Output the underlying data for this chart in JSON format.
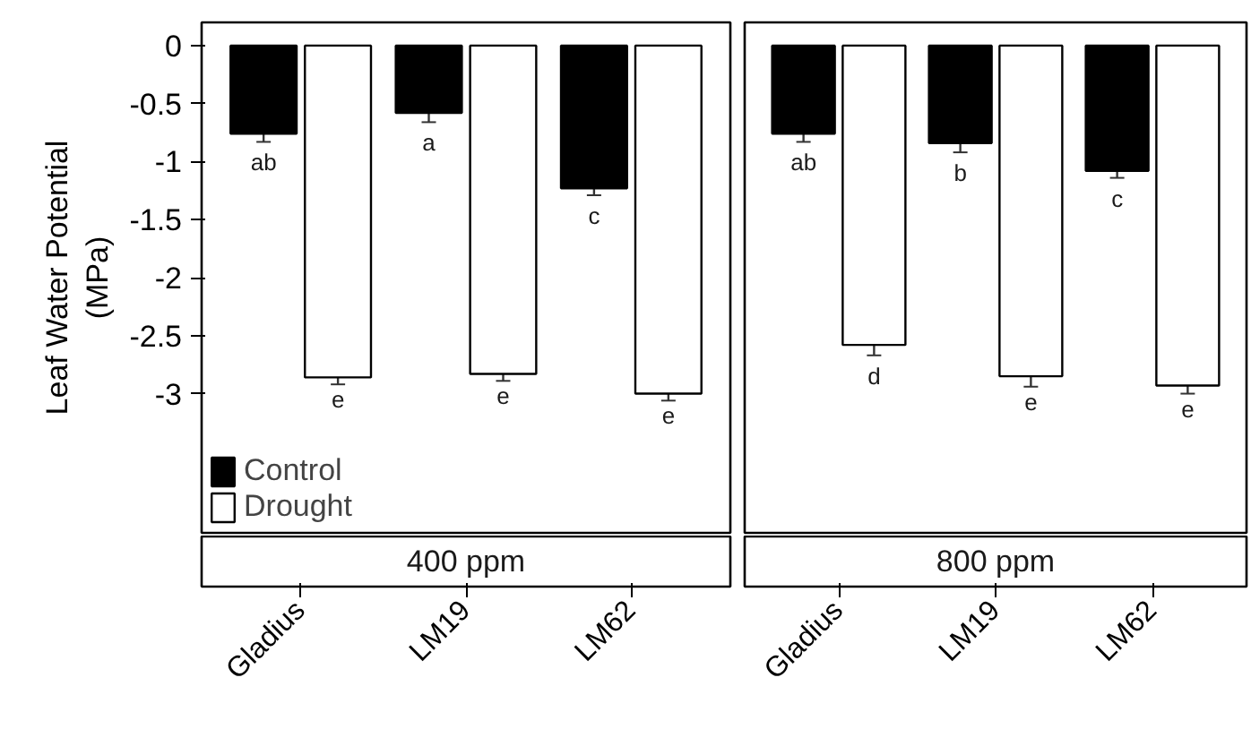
{
  "chart_data": [
    {
      "type": "bar",
      "title": "400 ppm",
      "ylabel": "Leaf Water Potential\n(MPa)",
      "categories": [
        "Gladius",
        "LM19",
        "LM62"
      ],
      "ylim": [
        -4.2,
        0.2
      ],
      "yticks": [
        0,
        {
          "value": -0.5,
          "label": "-0.5"
        },
        {
          "value": -1,
          "label": "-1"
        },
        {
          "value": -1.5,
          "label": "-1.5"
        },
        {
          "value": -2,
          "label": "-2"
        },
        {
          "value": -2.5,
          "label": "-2.5"
        },
        {
          "value": -3,
          "label": "-3"
        }
      ],
      "legend": "bottom left",
      "grid": false,
      "series": [
        {
          "name": "Control",
          "color": "#000000",
          "values": [
            -0.76,
            -0.58,
            -1.23
          ],
          "errors": [
            0.07,
            0.08,
            0.06
          ],
          "value_labels": [
            "ab",
            "a",
            "c"
          ]
        },
        {
          "name": "Drought",
          "color": "#ffffff",
          "values": [
            -2.86,
            -2.83,
            -3.0
          ],
          "errors": [
            0.06,
            0.06,
            0.06
          ],
          "value_labels": [
            "e",
            "e",
            "e"
          ]
        }
      ]
    },
    {
      "type": "bar",
      "title": "800 ppm",
      "categories": [
        "Gladius",
        "LM19",
        "LM62"
      ],
      "ylim": [
        -4.2,
        0.2
      ],
      "tick_labels": "x",
      "grid": false,
      "series": [
        {
          "color": "#000000",
          "values": [
            -0.76,
            -0.84,
            -1.08
          ],
          "errors": [
            0.07,
            0.08,
            0.06
          ],
          "value_labels": [
            "ab",
            "b",
            "c"
          ]
        },
        {
          "color": "#ffffff",
          "values": [
            -2.58,
            -2.85,
            -2.93
          ],
          "errors": [
            0.09,
            0.09,
            0.07
          ],
          "value_labels": [
            "d",
            "e",
            "e"
          ]
        }
      ]
    }
  ]
}
